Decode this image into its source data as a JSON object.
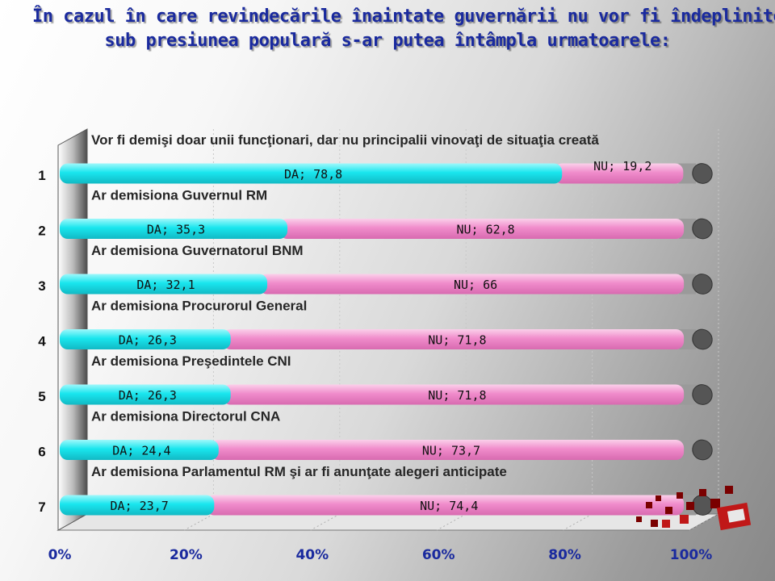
{
  "title_lines": [
    "În cazul în care revindecările înaintate guvernării nu vor fi îndeplinite,",
    "sub presiunea populară s-ar putea întâmpla urmatoarele:"
  ],
  "colors": {
    "da": "#19e6ee",
    "nu": "#f08ccb",
    "cap": "#555555",
    "title": "#1a2a9e"
  },
  "chart_data": {
    "type": "bar",
    "orientation": "horizontal",
    "stacked": true,
    "categories": [
      "1",
      "2",
      "3",
      "4",
      "5",
      "6",
      "7"
    ],
    "bar_labels": [
      "Vor fi demişi doar unii funcţionari, dar nu principalii vinovaţi de situaţia creată",
      "Ar demisiona Guvernul RM",
      "Ar demisiona Guvernatorul BNM",
      "Ar demisiona Procurorul General",
      "Ar demisiona Preşedintele CNI",
      "Ar demisiona Directorul CNA",
      "Ar demisiona Parlamentul RM şi ar fi anunţate alegeri anticipate"
    ],
    "series": [
      {
        "name": "DA",
        "values": [
          78.8,
          35.3,
          32.1,
          26.3,
          26.3,
          24.4,
          23.7
        ]
      },
      {
        "name": "NU",
        "values": [
          19.2,
          62.8,
          66,
          71.8,
          71.8,
          73.7,
          74.4
        ]
      }
    ],
    "data_labels": {
      "DA": [
        "DA; 78,8",
        "DA; 35,3",
        "DA; 32,1",
        "DA; 26,3",
        "DA; 26,3",
        "DA; 24,4",
        "DA; 23,7"
      ],
      "NU": [
        "NU; 19,2",
        "NU; 62,8",
        "NU; 66",
        "NU; 71,8",
        "NU; 71,8",
        "NU; 73,7",
        "NU; 74,4"
      ]
    },
    "x_ticks": [
      "0%",
      "20%",
      "40%",
      "60%",
      "80%",
      "100%"
    ],
    "xlim": [
      0,
      100
    ],
    "grid": true,
    "legend": "none"
  }
}
